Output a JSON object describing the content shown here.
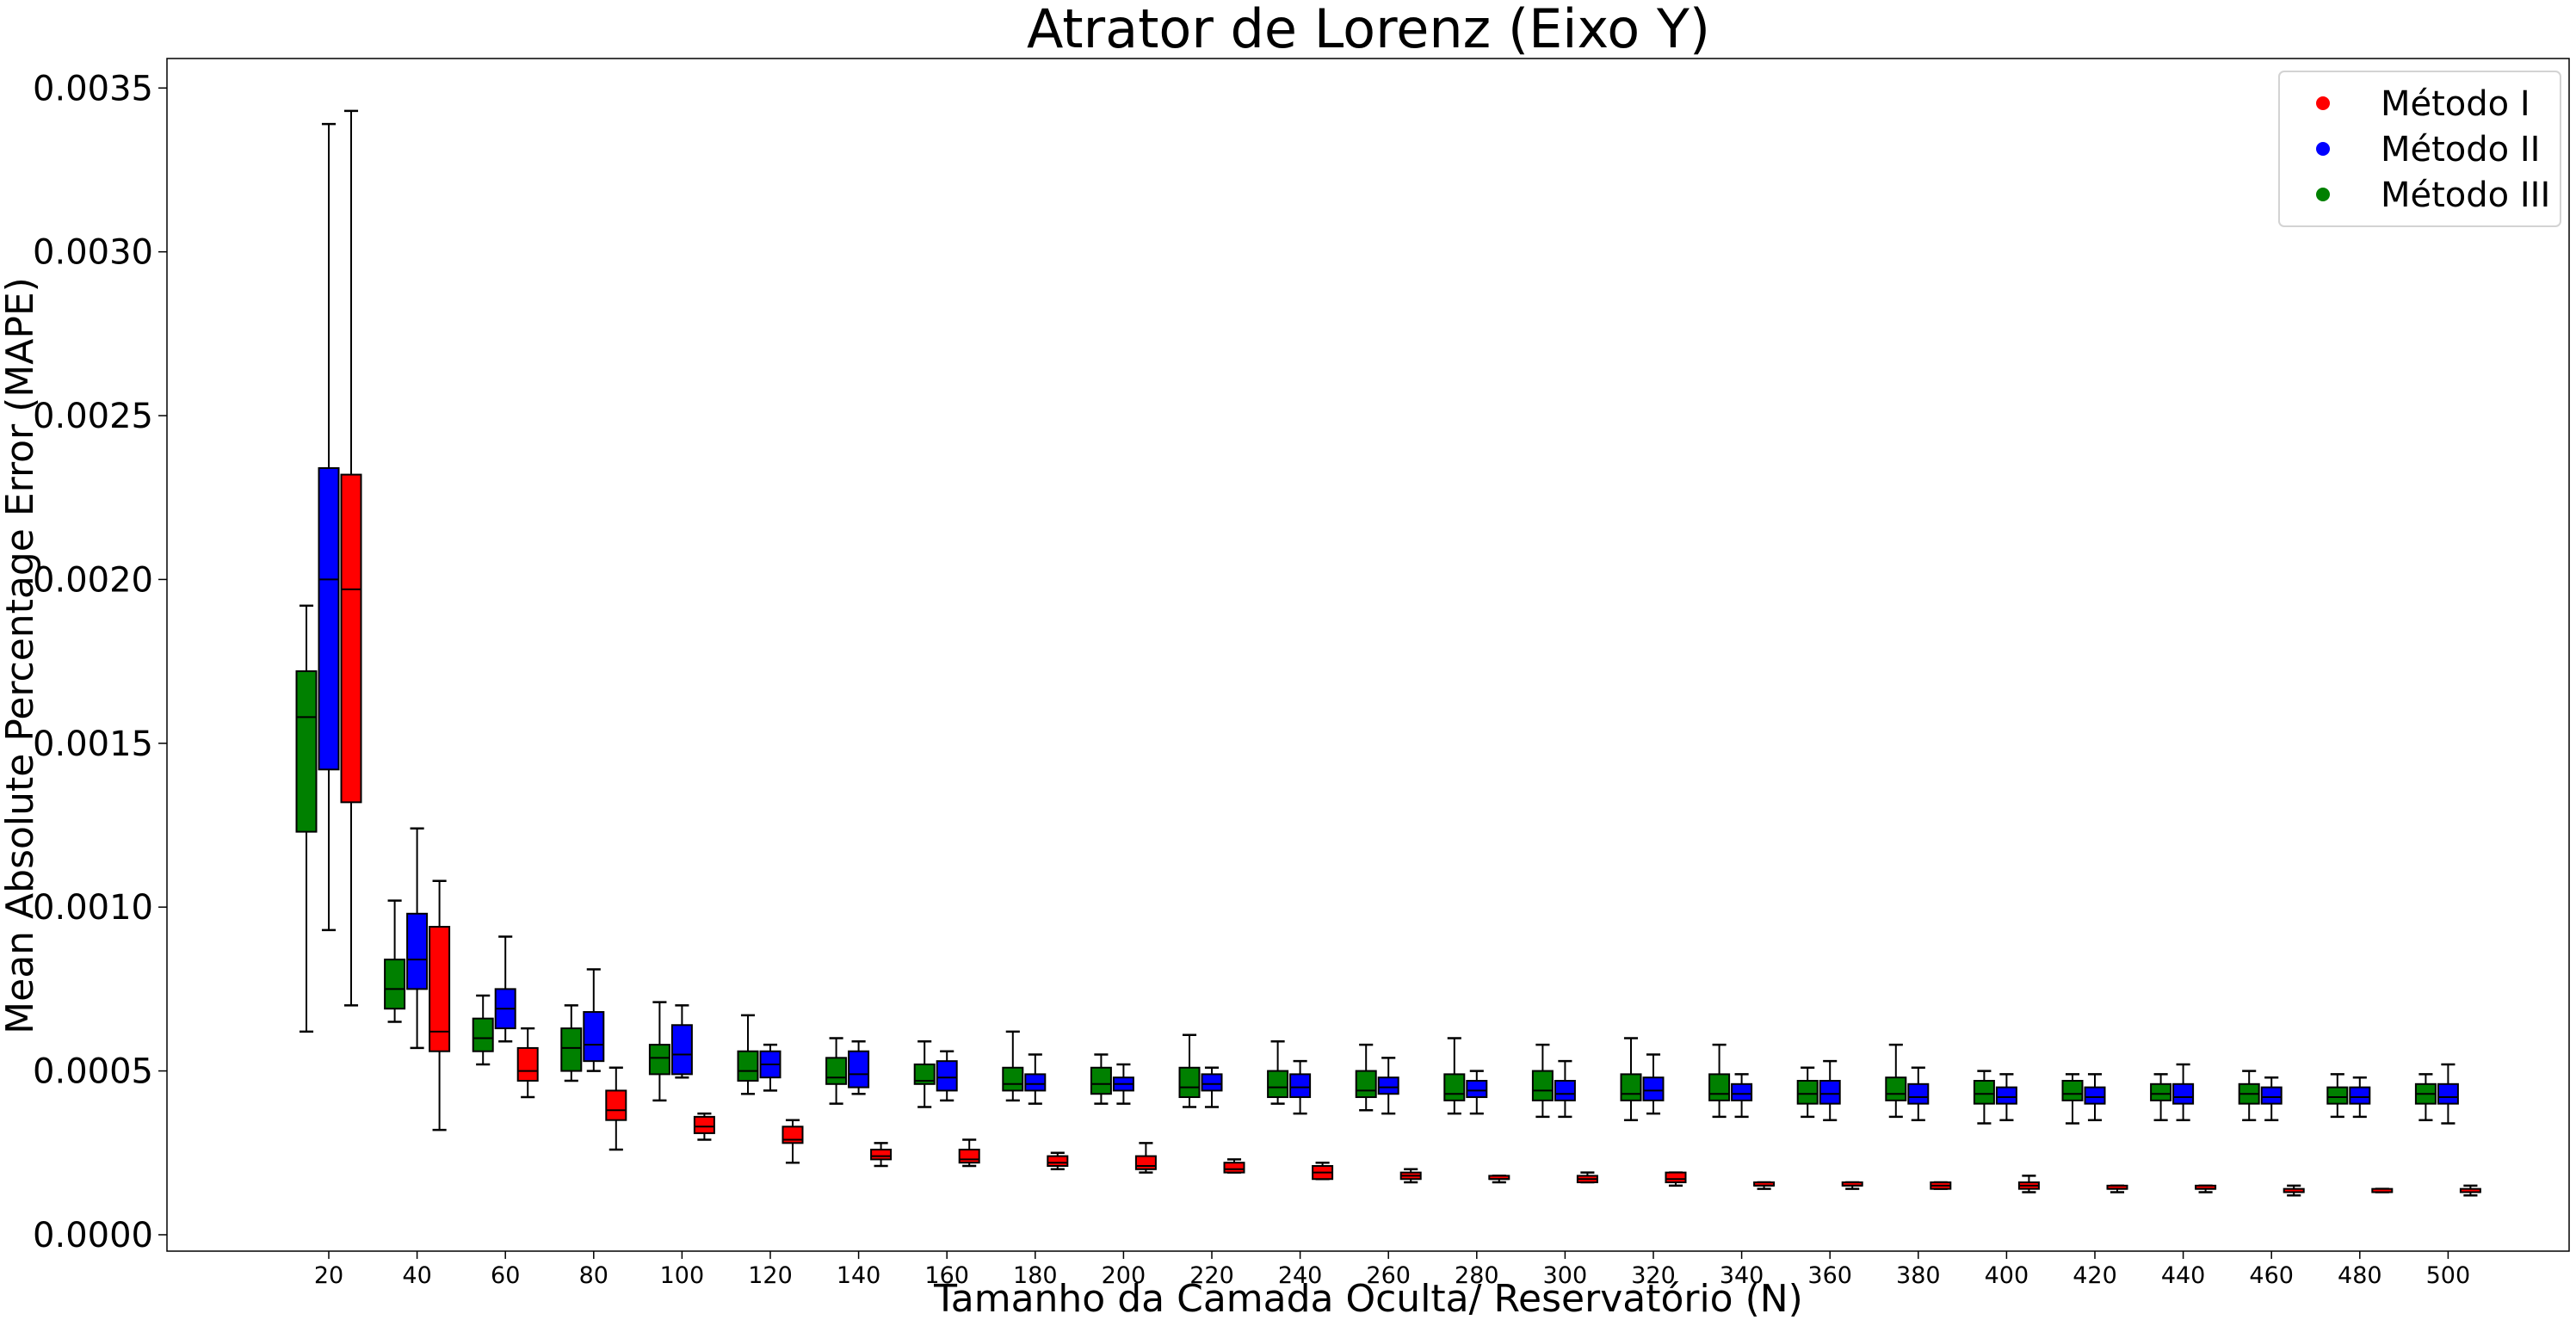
{
  "chart_data": {
    "type": "box",
    "title": "Atrator de Lorenz (Eixo Y)",
    "xlabel": "Tamanho da Camada Oculta/ Reservatório (N)",
    "ylabel": "Mean Absolute Percentage Error (MAPE)",
    "ylim": [
      -5e-05,
      0.00359
    ],
    "yticks": [
      "0.0000",
      "0.0005",
      "0.0010",
      "0.0015",
      "0.0020",
      "0.0025",
      "0.0030",
      "0.0035"
    ],
    "categories": [
      "20",
      "40",
      "60",
      "80",
      "100",
      "120",
      "140",
      "160",
      "180",
      "200",
      "220",
      "240",
      "260",
      "280",
      "300",
      "320",
      "340",
      "360",
      "380",
      "400",
      "420",
      "440",
      "460",
      "480",
      "500"
    ],
    "legend_position": "upper right",
    "grid": false,
    "series": [
      {
        "name": "Método III",
        "color": "#008000",
        "slot": -1,
        "boxes": [
          {
            "lo": 0.00062,
            "q1": 0.00123,
            "med": 0.00158,
            "q3": 0.00172,
            "hi": 0.00192
          },
          {
            "lo": 0.00065,
            "q1": 0.00069,
            "med": 0.00075,
            "q3": 0.00084,
            "hi": 0.00102
          },
          {
            "lo": 0.00052,
            "q1": 0.00056,
            "med": 0.0006,
            "q3": 0.00066,
            "hi": 0.00073
          },
          {
            "lo": 0.00047,
            "q1": 0.0005,
            "med": 0.00057,
            "q3": 0.00063,
            "hi": 0.0007
          },
          {
            "lo": 0.00041,
            "q1": 0.00049,
            "med": 0.00054,
            "q3": 0.00058,
            "hi": 0.00071
          },
          {
            "lo": 0.00043,
            "q1": 0.00047,
            "med": 0.0005,
            "q3": 0.00056,
            "hi": 0.00067
          },
          {
            "lo": 0.0004,
            "q1": 0.00046,
            "med": 0.00048,
            "q3": 0.00054,
            "hi": 0.0006
          },
          {
            "lo": 0.00039,
            "q1": 0.00046,
            "med": 0.00047,
            "q3": 0.00052,
            "hi": 0.00059
          },
          {
            "lo": 0.00041,
            "q1": 0.00044,
            "med": 0.00046,
            "q3": 0.00051,
            "hi": 0.00062
          },
          {
            "lo": 0.0004,
            "q1": 0.00043,
            "med": 0.00046,
            "q3": 0.00051,
            "hi": 0.00055
          },
          {
            "lo": 0.00039,
            "q1": 0.00042,
            "med": 0.00045,
            "q3": 0.00051,
            "hi": 0.00061
          },
          {
            "lo": 0.0004,
            "q1": 0.00042,
            "med": 0.00045,
            "q3": 0.0005,
            "hi": 0.00059
          },
          {
            "lo": 0.00038,
            "q1": 0.00042,
            "med": 0.00044,
            "q3": 0.0005,
            "hi": 0.00058
          },
          {
            "lo": 0.00037,
            "q1": 0.00041,
            "med": 0.00043,
            "q3": 0.00049,
            "hi": 0.0006
          },
          {
            "lo": 0.00036,
            "q1": 0.00041,
            "med": 0.00044,
            "q3": 0.0005,
            "hi": 0.00058
          },
          {
            "lo": 0.00035,
            "q1": 0.00041,
            "med": 0.00043,
            "q3": 0.00049,
            "hi": 0.0006
          },
          {
            "lo": 0.00036,
            "q1": 0.00041,
            "med": 0.00043,
            "q3": 0.00049,
            "hi": 0.00058
          },
          {
            "lo": 0.00036,
            "q1": 0.0004,
            "med": 0.00043,
            "q3": 0.00047,
            "hi": 0.00051
          },
          {
            "lo": 0.00036,
            "q1": 0.00041,
            "med": 0.00043,
            "q3": 0.00048,
            "hi": 0.00058
          },
          {
            "lo": 0.00034,
            "q1": 0.0004,
            "med": 0.00043,
            "q3": 0.00047,
            "hi": 0.0005
          },
          {
            "lo": 0.00034,
            "q1": 0.00041,
            "med": 0.00043,
            "q3": 0.00047,
            "hi": 0.00049
          },
          {
            "lo": 0.00035,
            "q1": 0.00041,
            "med": 0.00043,
            "q3": 0.00046,
            "hi": 0.00049
          },
          {
            "lo": 0.00035,
            "q1": 0.0004,
            "med": 0.00043,
            "q3": 0.00046,
            "hi": 0.0005
          },
          {
            "lo": 0.00036,
            "q1": 0.0004,
            "med": 0.00042,
            "q3": 0.00045,
            "hi": 0.00049
          },
          {
            "lo": 0.00035,
            "q1": 0.0004,
            "med": 0.00043,
            "q3": 0.00046,
            "hi": 0.00049
          }
        ]
      },
      {
        "name": "Método II",
        "color": "#0000ff",
        "slot": 0,
        "boxes": [
          {
            "lo": 0.00093,
            "q1": 0.00142,
            "med": 0.002,
            "q3": 0.00234,
            "hi": 0.00339
          },
          {
            "lo": 0.00057,
            "q1": 0.00075,
            "med": 0.00084,
            "q3": 0.00098,
            "hi": 0.00124
          },
          {
            "lo": 0.00059,
            "q1": 0.00063,
            "med": 0.00069,
            "q3": 0.00075,
            "hi": 0.00091
          },
          {
            "lo": 0.0005,
            "q1": 0.00053,
            "med": 0.00058,
            "q3": 0.00068,
            "hi": 0.00081
          },
          {
            "lo": 0.00048,
            "q1": 0.00049,
            "med": 0.00055,
            "q3": 0.00064,
            "hi": 0.0007
          },
          {
            "lo": 0.00044,
            "q1": 0.00048,
            "med": 0.00052,
            "q3": 0.00056,
            "hi": 0.00058
          },
          {
            "lo": 0.00043,
            "q1": 0.00045,
            "med": 0.00049,
            "q3": 0.00056,
            "hi": 0.00059
          },
          {
            "lo": 0.00041,
            "q1": 0.00044,
            "med": 0.00048,
            "q3": 0.00053,
            "hi": 0.00056
          },
          {
            "lo": 0.0004,
            "q1": 0.00044,
            "med": 0.00046,
            "q3": 0.00049,
            "hi": 0.00055
          },
          {
            "lo": 0.0004,
            "q1": 0.00044,
            "med": 0.00046,
            "q3": 0.00048,
            "hi": 0.00052
          },
          {
            "lo": 0.00039,
            "q1": 0.00044,
            "med": 0.00046,
            "q3": 0.00049,
            "hi": 0.00051
          },
          {
            "lo": 0.00037,
            "q1": 0.00042,
            "med": 0.00045,
            "q3": 0.00049,
            "hi": 0.00053
          },
          {
            "lo": 0.00037,
            "q1": 0.00043,
            "med": 0.00045,
            "q3": 0.00048,
            "hi": 0.00054
          },
          {
            "lo": 0.00037,
            "q1": 0.00042,
            "med": 0.00044,
            "q3": 0.00047,
            "hi": 0.0005
          },
          {
            "lo": 0.00036,
            "q1": 0.00041,
            "med": 0.00043,
            "q3": 0.00047,
            "hi": 0.00053
          },
          {
            "lo": 0.00037,
            "q1": 0.00041,
            "med": 0.00044,
            "q3": 0.00048,
            "hi": 0.00055
          },
          {
            "lo": 0.00036,
            "q1": 0.00041,
            "med": 0.00043,
            "q3": 0.00046,
            "hi": 0.00049
          },
          {
            "lo": 0.00035,
            "q1": 0.0004,
            "med": 0.00043,
            "q3": 0.00047,
            "hi": 0.00053
          },
          {
            "lo": 0.00035,
            "q1": 0.0004,
            "med": 0.00042,
            "q3": 0.00046,
            "hi": 0.00051
          },
          {
            "lo": 0.00035,
            "q1": 0.0004,
            "med": 0.00042,
            "q3": 0.00045,
            "hi": 0.00049
          },
          {
            "lo": 0.00035,
            "q1": 0.0004,
            "med": 0.00042,
            "q3": 0.00045,
            "hi": 0.00049
          },
          {
            "lo": 0.00035,
            "q1": 0.0004,
            "med": 0.00042,
            "q3": 0.00046,
            "hi": 0.00052
          },
          {
            "lo": 0.00035,
            "q1": 0.0004,
            "med": 0.00042,
            "q3": 0.00045,
            "hi": 0.00048
          },
          {
            "lo": 0.00036,
            "q1": 0.0004,
            "med": 0.00042,
            "q3": 0.00045,
            "hi": 0.00048
          },
          {
            "lo": 0.00034,
            "q1": 0.0004,
            "med": 0.00042,
            "q3": 0.00046,
            "hi": 0.00052
          }
        ]
      },
      {
        "name": "Método I",
        "color": "#ff0000",
        "slot": 1,
        "boxes": [
          {
            "lo": 0.0007,
            "q1": 0.00132,
            "med": 0.00197,
            "q3": 0.00232,
            "hi": 0.00343
          },
          {
            "lo": 0.00032,
            "q1": 0.00056,
            "med": 0.00062,
            "q3": 0.00094,
            "hi": 0.00108
          },
          {
            "lo": 0.00042,
            "q1": 0.00047,
            "med": 0.0005,
            "q3": 0.00057,
            "hi": 0.00063
          },
          {
            "lo": 0.00026,
            "q1": 0.00035,
            "med": 0.00038,
            "q3": 0.00044,
            "hi": 0.00051
          },
          {
            "lo": 0.00029,
            "q1": 0.00031,
            "med": 0.00033,
            "q3": 0.00036,
            "hi": 0.00037
          },
          {
            "lo": 0.00022,
            "q1": 0.00028,
            "med": 0.00029,
            "q3": 0.00033,
            "hi": 0.00035
          },
          {
            "lo": 0.00021,
            "q1": 0.00023,
            "med": 0.00024,
            "q3": 0.00026,
            "hi": 0.00028
          },
          {
            "lo": 0.00021,
            "q1": 0.00022,
            "med": 0.00023,
            "q3": 0.00026,
            "hi": 0.00029
          },
          {
            "lo": 0.0002,
            "q1": 0.00021,
            "med": 0.00022,
            "q3": 0.00024,
            "hi": 0.00025
          },
          {
            "lo": 0.00019,
            "q1": 0.0002,
            "med": 0.00021,
            "q3": 0.00024,
            "hi": 0.00028
          },
          {
            "lo": 0.00019,
            "q1": 0.00019,
            "med": 0.0002,
            "q3": 0.00022,
            "hi": 0.00023
          },
          {
            "lo": 0.00017,
            "q1": 0.00017,
            "med": 0.00019,
            "q3": 0.00021,
            "hi": 0.00022
          },
          {
            "lo": 0.00016,
            "q1": 0.00017,
            "med": 0.00018,
            "q3": 0.00019,
            "hi": 0.0002
          },
          {
            "lo": 0.00016,
            "q1": 0.00017,
            "med": 0.00017,
            "q3": 0.00018,
            "hi": 0.00018
          },
          {
            "lo": 0.00016,
            "q1": 0.00016,
            "med": 0.00017,
            "q3": 0.00018,
            "hi": 0.00019
          },
          {
            "lo": 0.00015,
            "q1": 0.00016,
            "med": 0.00017,
            "q3": 0.00019,
            "hi": 0.00019
          },
          {
            "lo": 0.00014,
            "q1": 0.00015,
            "med": 0.00015,
            "q3": 0.00016,
            "hi": 0.00016
          },
          {
            "lo": 0.00014,
            "q1": 0.00015,
            "med": 0.00015,
            "q3": 0.00016,
            "hi": 0.00016
          },
          {
            "lo": 0.00014,
            "q1": 0.00014,
            "med": 0.00015,
            "q3": 0.00016,
            "hi": 0.00016
          },
          {
            "lo": 0.00013,
            "q1": 0.00014,
            "med": 0.00015,
            "q3": 0.00016,
            "hi": 0.00018
          },
          {
            "lo": 0.00013,
            "q1": 0.00014,
            "med": 0.00014,
            "q3": 0.00015,
            "hi": 0.00015
          },
          {
            "lo": 0.00013,
            "q1": 0.00014,
            "med": 0.00014,
            "q3": 0.00015,
            "hi": 0.00015
          },
          {
            "lo": 0.00012,
            "q1": 0.00013,
            "med": 0.00013,
            "q3": 0.00014,
            "hi": 0.00015
          },
          {
            "lo": 0.00013,
            "q1": 0.00013,
            "med": 0.00013,
            "q3": 0.00014,
            "hi": 0.00014
          },
          {
            "lo": 0.00012,
            "q1": 0.00013,
            "med": 0.00013,
            "q3": 0.00014,
            "hi": 0.00015
          }
        ]
      }
    ],
    "legend": [
      {
        "label": "Método I",
        "color": "#ff0000"
      },
      {
        "label": "Método II",
        "color": "#0000ff"
      },
      {
        "label": "Método III",
        "color": "#008000"
      }
    ]
  }
}
